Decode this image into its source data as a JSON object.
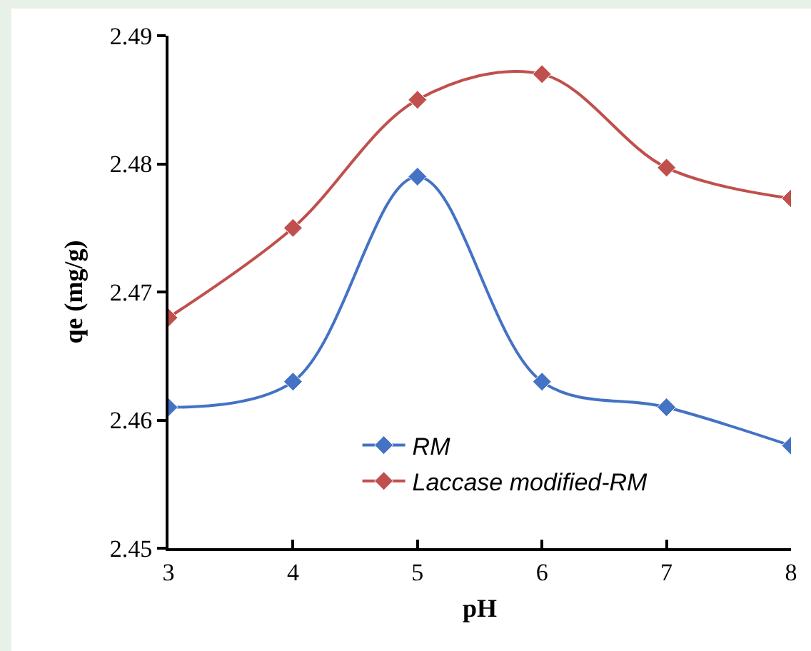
{
  "chart_data": {
    "type": "line",
    "xlabel": "pH",
    "ylabel": "qe (mg/g)",
    "x": [
      3,
      4,
      5,
      6,
      7,
      8
    ],
    "series": [
      {
        "name": "RM",
        "color": "#4472c4",
        "values": [
          2.461,
          2.463,
          2.479,
          2.463,
          2.461,
          2.458
        ]
      },
      {
        "name": "Laccase modified-RM",
        "color": "#c0504d",
        "values": [
          2.468,
          2.475,
          2.485,
          2.487,
          2.4797,
          2.4773
        ]
      }
    ],
    "xlim": [
      3,
      8
    ],
    "xticks": [
      3,
      4,
      5,
      6,
      7,
      8
    ],
    "ylim": [
      2.45,
      2.49
    ],
    "yticks": [
      2.45,
      2.46,
      2.47,
      2.48,
      2.49
    ],
    "grid": false,
    "legend": "bottom",
    "marker": "diamond",
    "line_style": "solid"
  }
}
